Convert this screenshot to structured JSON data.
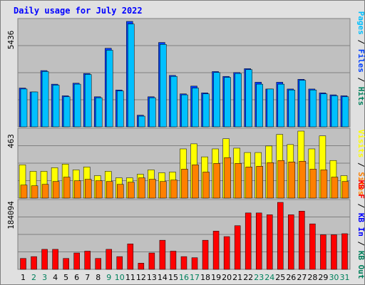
{
  "title": "Daily usage for July 2022",
  "colors": {
    "background": "#e0e0e0",
    "panel": "#c0c0c0",
    "title": "#0000ff",
    "hits": "#00805c",
    "files": "#0040ff",
    "pages": "#00c0ff",
    "visits": "#ffff00",
    "sites": "#ff8000",
    "kbin": "#0000ff",
    "kbout": "#00805c",
    "kbf": "#ff0000",
    "weekend_day": "#00805c",
    "weekday": "#000000"
  },
  "chart_data": [
    {
      "type": "bar",
      "panel": "top",
      "axis_max_label": "5436",
      "ylim": [
        0,
        5436
      ],
      "categories": [
        "1",
        "2",
        "3",
        "4",
        "5",
        "6",
        "7",
        "8",
        "9",
        "10",
        "11",
        "12",
        "13",
        "14",
        "15",
        "16",
        "17",
        "18",
        "19",
        "20",
        "21",
        "22",
        "23",
        "24",
        "25",
        "26",
        "27",
        "28",
        "29",
        "30",
        "31"
      ],
      "series": [
        {
          "name": "Hits",
          "values": [
            null,
            null,
            null,
            null,
            null,
            null,
            null,
            null,
            null,
            null,
            null,
            null,
            null,
            null,
            null,
            null,
            null,
            null,
            null,
            null,
            null,
            null,
            null,
            null,
            null,
            null,
            null,
            null,
            null,
            null,
            null
          ]
        },
        {
          "name": "Files",
          "values": [
            2000,
            1800,
            2900,
            2200,
            1600,
            2250,
            2750,
            1550,
            4050,
            1900,
            5436,
            600,
            1550,
            4350,
            2650,
            1700,
            2100,
            1750,
            2850,
            2600,
            2800,
            3000,
            2300,
            1950,
            2300,
            1950,
            2450,
            1950,
            1750,
            1650,
            1600
          ]
        },
        {
          "name": "Pages",
          "values": [
            1950,
            1800,
            2850,
            2150,
            1550,
            2200,
            2700,
            1500,
            3950,
            1850,
            5300,
            550,
            1500,
            4250,
            2600,
            1650,
            2000,
            1700,
            2800,
            2550,
            2750,
            2950,
            2200,
            1950,
            2200,
            1900,
            2400,
            1900,
            1700,
            1600,
            1550
          ]
        }
      ],
      "right_label_parts": [
        "Pages",
        "Files",
        "Hits"
      ]
    },
    {
      "type": "bar",
      "panel": "middle",
      "axis_max_label": "463",
      "ylim": [
        0,
        463
      ],
      "categories": [
        "1",
        "2",
        "3",
        "4",
        "5",
        "6",
        "7",
        "8",
        "9",
        "10",
        "11",
        "12",
        "13",
        "14",
        "15",
        "16",
        "17",
        "18",
        "19",
        "20",
        "21",
        "22",
        "23",
        "24",
        "25",
        "26",
        "27",
        "28",
        "29",
        "30",
        "31"
      ],
      "series": [
        {
          "name": "Visits",
          "values": [
            230,
            185,
            185,
            210,
            235,
            195,
            215,
            155,
            185,
            140,
            140,
            165,
            195,
            175,
            180,
            340,
            375,
            285,
            340,
            410,
            345,
            315,
            315,
            360,
            440,
            370,
            463,
            340,
            430,
            260,
            155
          ]
        },
        {
          "name": "Sites",
          "values": [
            90,
            85,
            95,
            115,
            145,
            120,
            130,
            120,
            115,
            95,
            110,
            140,
            130,
            115,
            125,
            200,
            230,
            180,
            240,
            280,
            240,
            215,
            220,
            245,
            260,
            250,
            255,
            200,
            195,
            145,
            115
          ]
        }
      ],
      "right_label_parts": [
        "Visits",
        "Sites"
      ]
    },
    {
      "type": "bar",
      "panel": "bottom",
      "axis_max_label": "184094",
      "ylim": [
        0,
        184094
      ],
      "categories": [
        "1",
        "2",
        "3",
        "4",
        "5",
        "6",
        "7",
        "8",
        "9",
        "10",
        "11",
        "12",
        "13",
        "14",
        "15",
        "16",
        "17",
        "18",
        "19",
        "20",
        "21",
        "22",
        "23",
        "24",
        "25",
        "26",
        "27",
        "28",
        "29",
        "30",
        "31"
      ],
      "series": [
        {
          "name": "KB F",
          "values": [
            30000,
            35000,
            55000,
            55000,
            30000,
            45000,
            50000,
            30000,
            55000,
            35000,
            70000,
            17000,
            45000,
            80000,
            50000,
            35000,
            32000,
            80000,
            105000,
            90000,
            120000,
            155000,
            155000,
            150000,
            184094,
            150000,
            160000,
            125000,
            95000,
            95000,
            98000
          ]
        }
      ],
      "right_label_parts": [
        "KB F",
        "KB In",
        "KB Out"
      ]
    }
  ],
  "day_labels": [
    "1",
    "2",
    "3",
    "4",
    "5",
    "6",
    "7",
    "8",
    "9",
    "10",
    "11",
    "12",
    "13",
    "14",
    "15",
    "16",
    "17",
    "18",
    "19",
    "20",
    "21",
    "22",
    "23",
    "24",
    "25",
    "26",
    "27",
    "28",
    "29",
    "30",
    "31"
  ],
  "weekend_days": [
    "2",
    "3",
    "9",
    "10",
    "16",
    "17",
    "23",
    "24",
    "30",
    "31"
  ]
}
